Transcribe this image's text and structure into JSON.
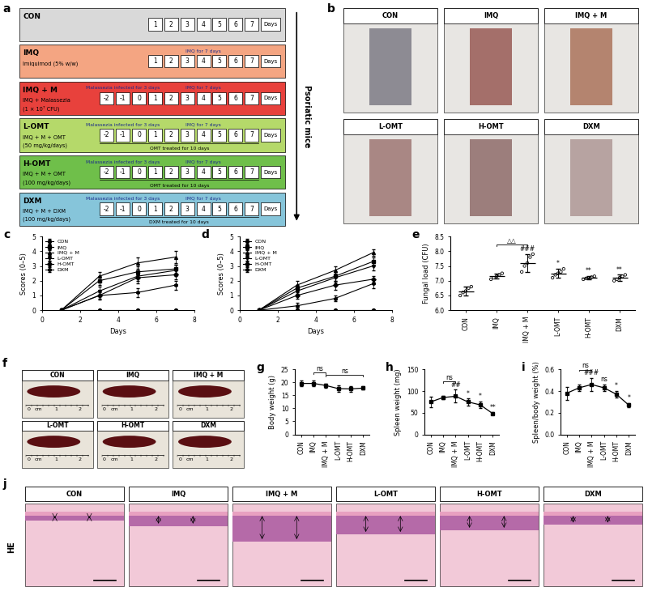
{
  "protocol": {
    "panel": "a",
    "side_label": "Psoriatic mice",
    "days_label": "Days",
    "rows": [
      {
        "name": "CON",
        "color": "#d9d9d9",
        "lines": [],
        "days": [
          1,
          2,
          3,
          4,
          5,
          6,
          7
        ],
        "above": [],
        "below": []
      },
      {
        "name": "IMQ",
        "color": "#f4a582",
        "lines": [
          "Imiquimod (5% w/w)"
        ],
        "days": [
          1,
          2,
          3,
          4,
          5,
          6,
          7
        ],
        "above": [
          {
            "text": "IMQ for 7 days",
            "span": [
              1,
              7
            ]
          }
        ],
        "below": []
      },
      {
        "name": "IMQ + M",
        "color": "#e8413c",
        "lines": [
          "IMQ + Malassezia",
          "(1 × 10⁷ CFU)"
        ],
        "days": [
          -2,
          -1,
          0,
          1,
          2,
          3,
          4,
          5,
          6,
          7
        ],
        "above": [
          {
            "text": "Malassezia infected for 3 days",
            "span": [
              -2,
              0
            ]
          },
          {
            "text": "IMQ for 7 days",
            "span": [
              1,
              7
            ]
          }
        ],
        "below": []
      },
      {
        "name": "L-OMT",
        "color": "#b5d96a",
        "lines": [
          "IMQ + M + OMT",
          "(50 mg/kg/days)"
        ],
        "days": [
          -2,
          -1,
          0,
          1,
          2,
          3,
          4,
          5,
          6,
          7
        ],
        "above": [
          {
            "text": "Malassezia infected for 3 days",
            "span": [
              -2,
              0
            ]
          },
          {
            "text": "IMQ for 7 days",
            "span": [
              1,
              7
            ]
          }
        ],
        "below": [
          {
            "text": "OMT treated for 10 days",
            "span": [
              -2,
              7
            ]
          }
        ]
      },
      {
        "name": "H-OMT",
        "color": "#6fbf4a",
        "lines": [
          "IMQ + M + OMT",
          "(100 mg/kg/days)"
        ],
        "days": [
          -2,
          -1,
          0,
          1,
          2,
          3,
          4,
          5,
          6,
          7
        ],
        "above": [
          {
            "text": "Malassezia infected for 3 days",
            "span": [
              -2,
              0
            ]
          },
          {
            "text": "IMQ for 7 days",
            "span": [
              1,
              7
            ]
          }
        ],
        "below": [
          {
            "text": "OMT treated for 10 days",
            "span": [
              -2,
              7
            ]
          }
        ]
      },
      {
        "name": "DXM",
        "color": "#86c5da",
        "lines": [
          "IMQ + M + DXM",
          "(100 mg/kg/days)"
        ],
        "days": [
          -2,
          -1,
          0,
          1,
          2,
          3,
          4,
          5,
          6,
          7
        ],
        "above": [
          {
            "text": "Malassezia infected for 3 days",
            "span": [
              -2,
              0
            ]
          },
          {
            "text": "IMQ for 7 days",
            "span": [
              1,
              7
            ]
          }
        ],
        "below": [
          {
            "text": "DXM treated for 10 days",
            "span": [
              -2,
              7
            ]
          }
        ]
      }
    ]
  },
  "photos_skin": {
    "panel": "b",
    "titles": [
      "CON",
      "IMQ",
      "IMQ + M",
      "L-OMT",
      "H-OMT",
      "DXM"
    ]
  },
  "chart_data": [
    {
      "panel": "c",
      "type": "line",
      "xlabel": "Days",
      "ylabel": "Scores (0–5)",
      "x": [
        1,
        3,
        5,
        7
      ],
      "xlim": [
        0,
        8
      ],
      "xticks": [
        0,
        2,
        4,
        6,
        8
      ],
      "ylim": [
        0,
        5
      ],
      "yticks": [
        0,
        1,
        2,
        3,
        4,
        5
      ],
      "legend": "upper left",
      "series": [
        {
          "name": "CON",
          "color": "#000000",
          "marker": "circle",
          "values": [
            0,
            0,
            0,
            0
          ],
          "errors": [
            0,
            0,
            0,
            0
          ]
        },
        {
          "name": "IMQ",
          "color": "#000000",
          "marker": "square",
          "values": [
            0,
            2.0,
            2.6,
            2.8
          ],
          "errors": [
            0,
            0.3,
            0.4,
            0.3
          ]
        },
        {
          "name": "IMQ + M",
          "color": "#000000",
          "marker": "triangle_up",
          "values": [
            0,
            2.3,
            3.2,
            3.6
          ],
          "errors": [
            0,
            0.3,
            0.4,
            0.4
          ]
        },
        {
          "name": "L-OMT",
          "color": "#000000",
          "marker": "triangle_down",
          "values": [
            0,
            1.3,
            2.3,
            2.7
          ],
          "errors": [
            0,
            0.3,
            0.3,
            0.4
          ]
        },
        {
          "name": "H-OMT",
          "color": "#000000",
          "marker": "diamond",
          "values": [
            0,
            1.0,
            2.2,
            2.4
          ],
          "errors": [
            0,
            0.3,
            0.4,
            0.3
          ]
        },
        {
          "name": "DXM",
          "color": "#000000",
          "marker": "hexagon",
          "values": [
            0,
            1.0,
            1.2,
            1.7
          ],
          "errors": [
            0,
            0.2,
            0.3,
            0.3
          ]
        }
      ]
    },
    {
      "panel": "d",
      "type": "line",
      "xlabel": "Days",
      "ylabel": "Scores (0–5)",
      "x": [
        1,
        3,
        5,
        7
      ],
      "xlim": [
        0,
        8
      ],
      "xticks": [
        0,
        2,
        4,
        6,
        8
      ],
      "ylim": [
        0,
        5
      ],
      "yticks": [
        0,
        1,
        2,
        3,
        4,
        5
      ],
      "legend": "upper left",
      "series": [
        {
          "name": "CON",
          "color": "#000000",
          "marker": "circle",
          "values": [
            0,
            0,
            0,
            0
          ],
          "errors": [
            0,
            0,
            0,
            0
          ]
        },
        {
          "name": "IMQ",
          "color": "#000000",
          "marker": "square",
          "values": [
            0,
            1.5,
            2.3,
            3.3
          ],
          "errors": [
            0,
            0.2,
            0.3,
            0.3
          ]
        },
        {
          "name": "IMQ + M",
          "color": "#000000",
          "marker": "triangle_up",
          "values": [
            0,
            1.7,
            2.7,
            3.9
          ],
          "errors": [
            0,
            0.3,
            0.3,
            0.2
          ]
        },
        {
          "name": "L-OMT",
          "color": "#000000",
          "marker": "triangle_down",
          "values": [
            0,
            1.3,
            2.2,
            3.0
          ],
          "errors": [
            0,
            0.2,
            0.3,
            0.3
          ]
        },
        {
          "name": "H-OMT",
          "color": "#000000",
          "marker": "diamond",
          "values": [
            0,
            1.0,
            1.7,
            2.1
          ],
          "errors": [
            0,
            0.2,
            0.3,
            0.2
          ]
        },
        {
          "name": "DXM",
          "color": "#000000",
          "marker": "hexagon",
          "values": [
            0,
            0.3,
            0.8,
            1.8
          ],
          "errors": [
            0,
            0.2,
            0.2,
            0.3
          ]
        }
      ]
    },
    {
      "panel": "e",
      "type": "dot",
      "ylabel": "Fungal load (CFU)",
      "color": "#000000",
      "categories": [
        "CON",
        "IMQ",
        "IMQ + M",
        "L-OMT",
        "H-OMT",
        "DXM"
      ],
      "values": [
        6.65,
        7.15,
        7.6,
        7.25,
        7.1,
        7.1
      ],
      "errors": [
        0.15,
        0.08,
        0.3,
        0.15,
        0.05,
        0.1
      ],
      "points": [
        [
          6.5,
          6.6,
          6.65,
          6.75,
          6.8
        ],
        [
          7.05,
          7.1,
          7.15,
          7.2,
          7.25
        ],
        [
          7.3,
          7.5,
          7.6,
          7.8,
          7.9
        ],
        [
          7.1,
          7.2,
          7.25,
          7.3,
          7.4
        ],
        [
          7.05,
          7.08,
          7.1,
          7.12,
          7.15
        ],
        [
          7.0,
          7.05,
          7.1,
          7.15,
          7.2
        ]
      ],
      "ylim": [
        6.0,
        8.5
      ],
      "yticks": [
        {
          "value": 6.0,
          "label": "6.0"
        },
        {
          "value": 6.5,
          "label": "6.5"
        },
        {
          "value": 7.0,
          "label": "7.0"
        },
        {
          "value": 7.5,
          "label": "7.5"
        },
        {
          "value": 8.0,
          "label": "8.0"
        },
        {
          "value": 8.5,
          "label": "8.5"
        }
      ],
      "annotations": [
        {
          "text": "###",
          "category": "IMQ + M"
        },
        {
          "text": "*",
          "category": "L-OMT"
        },
        {
          "text": "**",
          "category": "H-OMT"
        },
        {
          "text": "**",
          "category": "DXM"
        }
      ],
      "brackets": [
        {
          "text": "△△",
          "from": "IMQ",
          "to": "IMQ + M"
        }
      ]
    },
    {
      "panel": "g",
      "type": "line",
      "ylabel": "Body weight (g)",
      "color": "#000000",
      "marker": "square",
      "categories": [
        "CON",
        "IMQ",
        "IMQ + M",
        "L-OMT",
        "H-OMT",
        "DXM"
      ],
      "values": [
        19.6,
        19.6,
        18.8,
        17.6,
        17.5,
        17.8
      ],
      "errors": [
        1.0,
        1.0,
        0.8,
        1.2,
        1.0,
        0.6
      ],
      "ylim": [
        0,
        25
      ],
      "yticks": [
        0,
        5,
        10,
        15,
        20,
        25
      ],
      "annotations": [],
      "brackets": [
        {
          "text": "ns",
          "from": "IMQ",
          "to": "IMQ + M"
        },
        {
          "text": "ns",
          "from": "IMQ + M",
          "to": "DXM"
        }
      ]
    },
    {
      "panel": "h",
      "type": "line",
      "ylabel": "Spleen weight (mg)",
      "color": "#000000",
      "marker": "square",
      "categories": [
        "CON",
        "IMQ",
        "IMQ + M",
        "L-OMT",
        "H-OMT",
        "DXM"
      ],
      "values": [
        75,
        85,
        88,
        75,
        68,
        48
      ],
      "errors": [
        12,
        4,
        15,
        8,
        8,
        3
      ],
      "ylim": [
        0,
        150
      ],
      "yticks": [
        0,
        50,
        100,
        150
      ],
      "annotations": [
        {
          "text": "##",
          "category": "IMQ + M"
        },
        {
          "text": "*",
          "category": "L-OMT"
        },
        {
          "text": "*",
          "category": "H-OMT"
        },
        {
          "text": "**",
          "category": "DXM"
        }
      ],
      "brackets": [
        {
          "text": "ns",
          "from": "IMQ",
          "to": "IMQ + M"
        }
      ]
    },
    {
      "panel": "i",
      "type": "line",
      "ylabel": "Spleen/body weight (%)",
      "color": "#000000",
      "marker": "square",
      "categories": [
        "CON",
        "IMQ",
        "IMQ + M",
        "L-OMT",
        "H-OMT",
        "DXM"
      ],
      "values": [
        0.38,
        0.43,
        0.46,
        0.43,
        0.37,
        0.27
      ],
      "errors": [
        0.06,
        0.03,
        0.06,
        0.03,
        0.03,
        0.02
      ],
      "ylim": [
        0.0,
        0.6
      ],
      "yticks": [
        {
          "value": 0.0,
          "label": "0.0"
        },
        {
          "value": 0.2,
          "label": "0.2"
        },
        {
          "value": 0.4,
          "label": "0.4"
        },
        {
          "value": 0.6,
          "label": "0.6"
        }
      ],
      "annotations": [
        {
          "text": "###",
          "category": "IMQ + M"
        },
        {
          "text": "ns",
          "category": "L-OMT"
        },
        {
          "text": "*",
          "category": "H-OMT"
        },
        {
          "text": "*",
          "category": "DXM"
        }
      ],
      "brackets": [
        {
          "text": "ns",
          "from": "IMQ",
          "to": "IMQ + M"
        }
      ]
    }
  ],
  "photos_spleen": {
    "panel": "f",
    "titles": [
      "CON",
      "IMQ",
      "IMQ + M",
      "L-OMT",
      "H-OMT",
      "DXM"
    ],
    "ruler_labels": [
      "0",
      "cm",
      "1",
      "2"
    ]
  },
  "histology": {
    "panel": "j",
    "stain": "HE",
    "titles": [
      "CON",
      "IMQ",
      "IMQ + M",
      "L-OMT",
      "H-OMT",
      "DXM"
    ]
  }
}
